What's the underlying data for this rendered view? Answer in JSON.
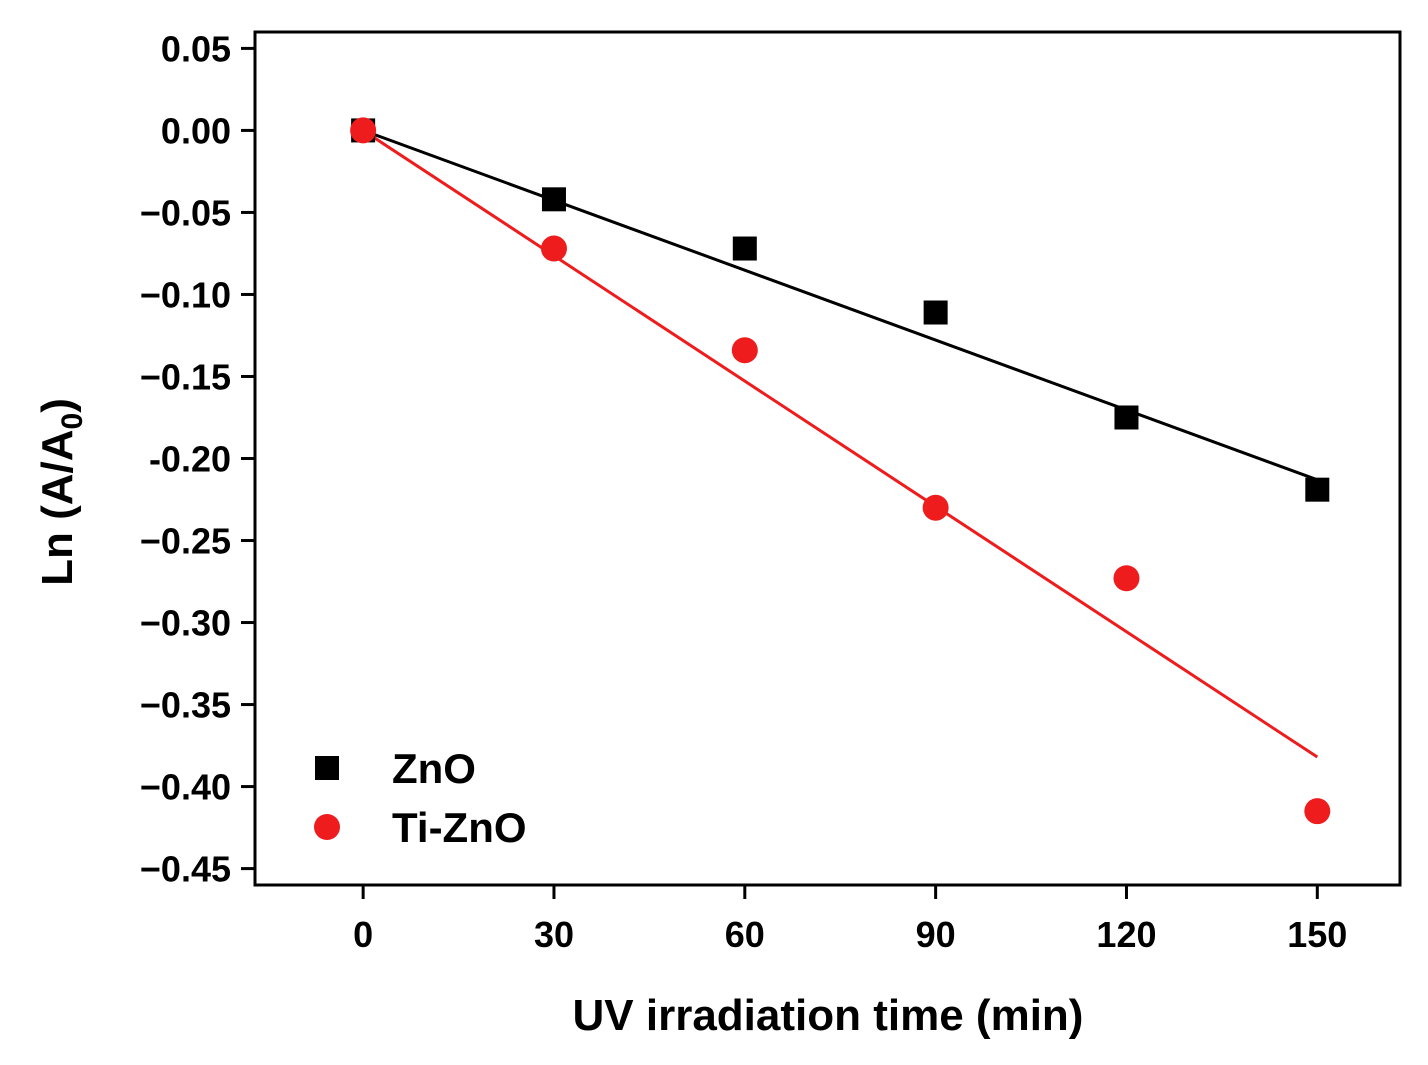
{
  "chart_data": {
    "type": "scatter",
    "title": "",
    "xlabel": "UV irradiation time (min)",
    "ylabel": "Ln (A/A",
    "ylabel_subscript": "0",
    "ylabel_suffix": ")",
    "xlim": [
      -17,
      163
    ],
    "ylim": [
      -0.46,
      0.06
    ],
    "xticks": [
      0,
      30,
      60,
      90,
      120,
      150
    ],
    "xtick_labels": [
      "0",
      "30",
      "60",
      "90",
      "120",
      "150"
    ],
    "yticks": [
      0.05,
      0.0,
      -0.05,
      -0.1,
      -0.15,
      -0.2,
      -0.25,
      -0.3,
      -0.35,
      -0.4,
      -0.45
    ],
    "ytick_labels": [
      "0.05",
      "0.00",
      "−0.05",
      "−0.10",
      "−0.15",
      "-0.20",
      "−0.25",
      "−0.30",
      "−0.35",
      "−0.40",
      "−0.45"
    ],
    "grid": false,
    "legend_position": "bottom-left",
    "series": [
      {
        "name": "ZnO",
        "marker": "square",
        "color": "#000000",
        "x": [
          0,
          30,
          60,
          90,
          120,
          150
        ],
        "y": [
          0.0,
          -0.042,
          -0.072,
          -0.111,
          -0.175,
          -0.219
        ],
        "fit_line": {
          "x": [
            0,
            150
          ],
          "y": [
            0.0,
            -0.213
          ]
        }
      },
      {
        "name": "Ti-ZnO",
        "marker": "circle",
        "color": "#ee1c1c",
        "x": [
          0,
          30,
          60,
          90,
          120,
          150
        ],
        "y": [
          0.0,
          -0.072,
          -0.134,
          -0.23,
          -0.273,
          -0.415
        ],
        "fit_line": {
          "x": [
            0,
            150
          ],
          "y": [
            0.0,
            -0.382
          ]
        }
      }
    ]
  }
}
